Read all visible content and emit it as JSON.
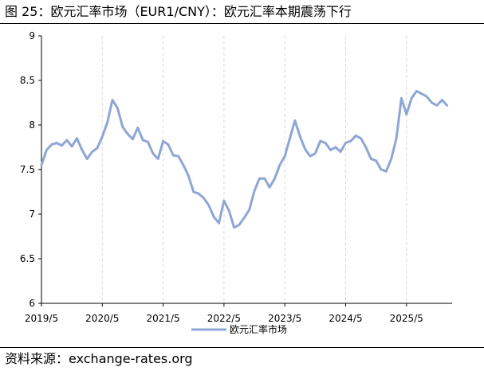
{
  "title": "图 25：欧元汇率市场（EUR1/CNY）：欧元汇率本期震荡下行",
  "source": "资料来源：exchange-rates.org",
  "chart_data": {
    "type": "line",
    "title": "图 25：欧元汇率市场（EUR1/CNY）：欧元汇率本期震荡下行",
    "xlabel": "",
    "ylabel": "",
    "x_ticks": [
      "2019/5",
      "2020/5",
      "2021/5",
      "2022/5",
      "2023/5",
      "2024/5",
      "2025/5"
    ],
    "y_ticks": [
      "6",
      "6.5",
      "7",
      "7.5",
      "8",
      "8.5",
      "9"
    ],
    "ylim": [
      6,
      9
    ],
    "xlim": [
      "2019-05",
      "2026-02"
    ],
    "grid": "vertical dashed lines at x ticks",
    "legend": {
      "position": "bottom-center"
    },
    "series": [
      {
        "name": "欧元汇率市场",
        "color": "#8EA6D6",
        "points": [
          [
            "2019-05",
            7.55
          ],
          [
            "2019-06",
            7.72
          ],
          [
            "2019-07",
            7.78
          ],
          [
            "2019-08",
            7.8
          ],
          [
            "2019-09",
            7.77
          ],
          [
            "2019-10",
            7.83
          ],
          [
            "2019-11",
            7.76
          ],
          [
            "2019-12",
            7.85
          ],
          [
            "2020-01",
            7.72
          ],
          [
            "2020-02",
            7.62
          ],
          [
            "2020-03",
            7.7
          ],
          [
            "2020-04",
            7.74
          ],
          [
            "2020-05",
            7.87
          ],
          [
            "2020-06",
            8.03
          ],
          [
            "2020-07",
            8.28
          ],
          [
            "2020-08",
            8.19
          ],
          [
            "2020-09",
            7.98
          ],
          [
            "2020-10",
            7.9
          ],
          [
            "2020-11",
            7.84
          ],
          [
            "2020-12",
            7.97
          ],
          [
            "2021-01",
            7.83
          ],
          [
            "2021-02",
            7.81
          ],
          [
            "2021-03",
            7.68
          ],
          [
            "2021-04",
            7.62
          ],
          [
            "2021-05",
            7.82
          ],
          [
            "2021-06",
            7.78
          ],
          [
            "2021-07",
            7.66
          ],
          [
            "2021-08",
            7.65
          ],
          [
            "2021-09",
            7.55
          ],
          [
            "2021-10",
            7.43
          ],
          [
            "2021-11",
            7.25
          ],
          [
            "2021-12",
            7.23
          ],
          [
            "2022-01",
            7.18
          ],
          [
            "2022-02",
            7.1
          ],
          [
            "2022-03",
            6.97
          ],
          [
            "2022-04",
            6.9
          ],
          [
            "2022-05",
            7.15
          ],
          [
            "2022-06",
            7.04
          ],
          [
            "2022-07",
            6.85
          ],
          [
            "2022-08",
            6.88
          ],
          [
            "2022-09",
            6.96
          ],
          [
            "2022-10",
            7.05
          ],
          [
            "2022-11",
            7.26
          ],
          [
            "2022-12",
            7.4
          ],
          [
            "2023-01",
            7.4
          ],
          [
            "2023-02",
            7.3
          ],
          [
            "2023-03",
            7.4
          ],
          [
            "2023-04",
            7.55
          ],
          [
            "2023-05",
            7.65
          ],
          [
            "2023-06",
            7.85
          ],
          [
            "2023-07",
            8.05
          ],
          [
            "2023-08",
            7.87
          ],
          [
            "2023-09",
            7.73
          ],
          [
            "2023-10",
            7.65
          ],
          [
            "2023-11",
            7.68
          ],
          [
            "2023-12",
            7.82
          ],
          [
            "2024-01",
            7.8
          ],
          [
            "2024-02",
            7.72
          ],
          [
            "2024-03",
            7.75
          ],
          [
            "2024-04",
            7.7
          ],
          [
            "2024-05",
            7.8
          ],
          [
            "2024-06",
            7.82
          ],
          [
            "2024-07",
            7.88
          ],
          [
            "2024-08",
            7.85
          ],
          [
            "2024-09",
            7.75
          ],
          [
            "2024-10",
            7.62
          ],
          [
            "2024-11",
            7.6
          ],
          [
            "2024-12",
            7.5
          ],
          [
            "2025-01",
            7.48
          ],
          [
            "2025-02",
            7.62
          ],
          [
            "2025-03",
            7.85
          ],
          [
            "2025-04",
            8.3
          ],
          [
            "2025-05",
            8.12
          ],
          [
            "2025-06",
            8.3
          ],
          [
            "2025-07",
            8.38
          ],
          [
            "2025-08",
            8.35
          ],
          [
            "2025-09",
            8.32
          ],
          [
            "2025-10",
            8.25
          ],
          [
            "2025-11",
            8.22
          ],
          [
            "2025-12",
            8.28
          ],
          [
            "2026-01",
            8.22
          ]
        ]
      }
    ]
  }
}
